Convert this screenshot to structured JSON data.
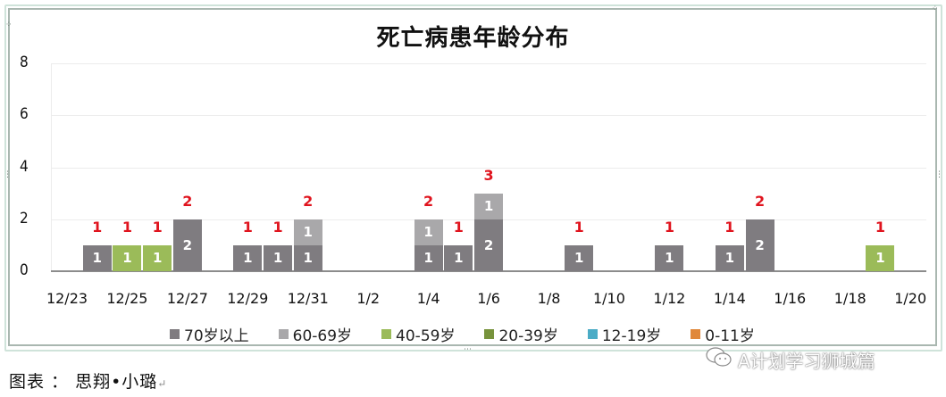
{
  "chart_data": {
    "type": "bar",
    "stacked": true,
    "title": "死亡病患年龄分布",
    "xlabel": "",
    "ylabel": "",
    "ylim": [
      0,
      8
    ],
    "yticks": [
      0,
      2,
      4,
      6,
      8
    ],
    "grid": true,
    "legend_position": "bottom",
    "x_tick_labels": [
      "12/23",
      "12/25",
      "12/27",
      "12/29",
      "12/31",
      "1/2",
      "1/4",
      "1/6",
      "1/8",
      "1/10",
      "1/12",
      "1/14",
      "1/16",
      "1/18",
      "1/20"
    ],
    "categories": [
      "12/24",
      "12/25",
      "12/26",
      "12/27",
      "12/29",
      "12/30",
      "12/31",
      "1/4",
      "1/5",
      "1/6",
      "1/9",
      "1/12",
      "1/14",
      "1/15",
      "1/19"
    ],
    "day_offsets": [
      1,
      2,
      3,
      4,
      6,
      7,
      8,
      12,
      13,
      14,
      17,
      20,
      22,
      23,
      27
    ],
    "series": [
      {
        "name": "70岁以上",
        "color": "#7f7c80",
        "values": [
          1,
          0,
          0,
          2,
          1,
          1,
          1,
          1,
          1,
          2,
          1,
          1,
          1,
          2,
          0
        ]
      },
      {
        "name": "60-69岁",
        "color": "#a9a8aa",
        "values": [
          0,
          0,
          0,
          0,
          0,
          0,
          1,
          1,
          0,
          1,
          0,
          0,
          0,
          0,
          0
        ]
      },
      {
        "name": "40-59岁",
        "color": "#9bbb59",
        "values": [
          0,
          1,
          1,
          0,
          0,
          0,
          0,
          0,
          0,
          0,
          0,
          0,
          0,
          0,
          1
        ]
      },
      {
        "name": "20-39岁",
        "color": "#77933c",
        "values": [
          0,
          0,
          0,
          0,
          0,
          0,
          0,
          0,
          0,
          0,
          0,
          0,
          0,
          0,
          0
        ]
      },
      {
        "name": "12-19岁",
        "color": "#4bacc6",
        "values": [
          0,
          0,
          0,
          0,
          0,
          0,
          0,
          0,
          0,
          0,
          0,
          0,
          0,
          0,
          0
        ]
      },
      {
        "name": "0-11岁",
        "color": "#e0883a",
        "values": [
          0,
          0,
          0,
          0,
          0,
          0,
          0,
          0,
          0,
          0,
          0,
          0,
          0,
          0,
          0
        ]
      }
    ],
    "totals": [
      1,
      1,
      1,
      2,
      1,
      1,
      2,
      2,
      1,
      3,
      1,
      1,
      1,
      2,
      1
    ],
    "total_label_color": "#e0141e"
  },
  "caption": {
    "text": "图表 ： 思翔•小璐",
    "return_mark": "↵"
  },
  "watermark": {
    "icon": "wechat-icon",
    "text": "A计划学习狮城篇"
  }
}
